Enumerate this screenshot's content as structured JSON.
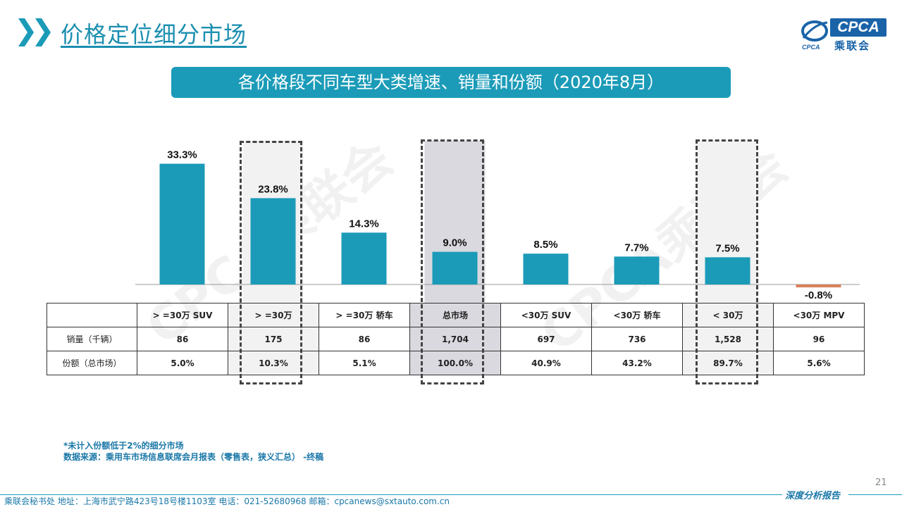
{
  "header": {
    "title": "价格定位细分市场",
    "logo_en": "CPCA",
    "logo_cn": "乘联会",
    "logo_mark_text": "CPCA",
    "watermark": "CPCA乘联会"
  },
  "banner": {
    "text": "各价格段不同车型大类增速、销量和份额（2020年8月）"
  },
  "chart_data": {
    "type": "bar",
    "title": "各价格段不同车型大类增速、销量和份额（2020年8月）",
    "categories": [
      ">=30万 SUV",
      ">=30万",
      ">=30万 轿车",
      "总市场",
      "<30万 SUV",
      "<30万 轿车",
      "<30万",
      "<30万 MPV"
    ],
    "series": [
      {
        "values": [
          33.3,
          23.8,
          14.3,
          9.0,
          8.5,
          7.7,
          7.5,
          -0.8
        ]
      }
    ],
    "value_labels": [
      "33.3%",
      "23.8%",
      "14.3%",
      "9.0%",
      "8.5%",
      "7.7%",
      "7.5%",
      "-0.8%"
    ],
    "ylim": [
      -1.0,
      36
    ],
    "colors": {
      "positive": "#1b9bb8",
      "negative": "#d9825b"
    },
    "highlighted": [
      ">=30万",
      "总市场",
      "<30万"
    ],
    "grid": false,
    "legend": "none"
  },
  "table": {
    "headers": [
      "> =30万 SUV",
      "> =30万",
      "> =30万 轿车",
      "总市场",
      "<30万 SUV",
      "<30万 轿车",
      "< 30万",
      "<30万 MPV"
    ],
    "rows": [
      {
        "label": "销量（千辆）",
        "values": [
          "86",
          "175",
          "86",
          "1,704",
          "697",
          "736",
          "1,528",
          "96"
        ]
      },
      {
        "label": "份额（总市场）",
        "values": [
          "5.0%",
          "10.3%",
          "5.1%",
          "100.0%",
          "40.9%",
          "43.2%",
          "89.7%",
          "5.6%"
        ]
      }
    ]
  },
  "notes": {
    "line1": "*未计入份额低于2%的细分市场",
    "line2": "数据来源：乘用车市场信息联席会月报表（零售表，狭义汇总） -终稿"
  },
  "footer": {
    "address": "乘联会秘书处   地址：上海市武宁路423号18号楼1103室   电话：021-52680968    邮箱：cpcanews@sxtauto.com.cn",
    "report": "深度分析报告",
    "page": "21"
  }
}
